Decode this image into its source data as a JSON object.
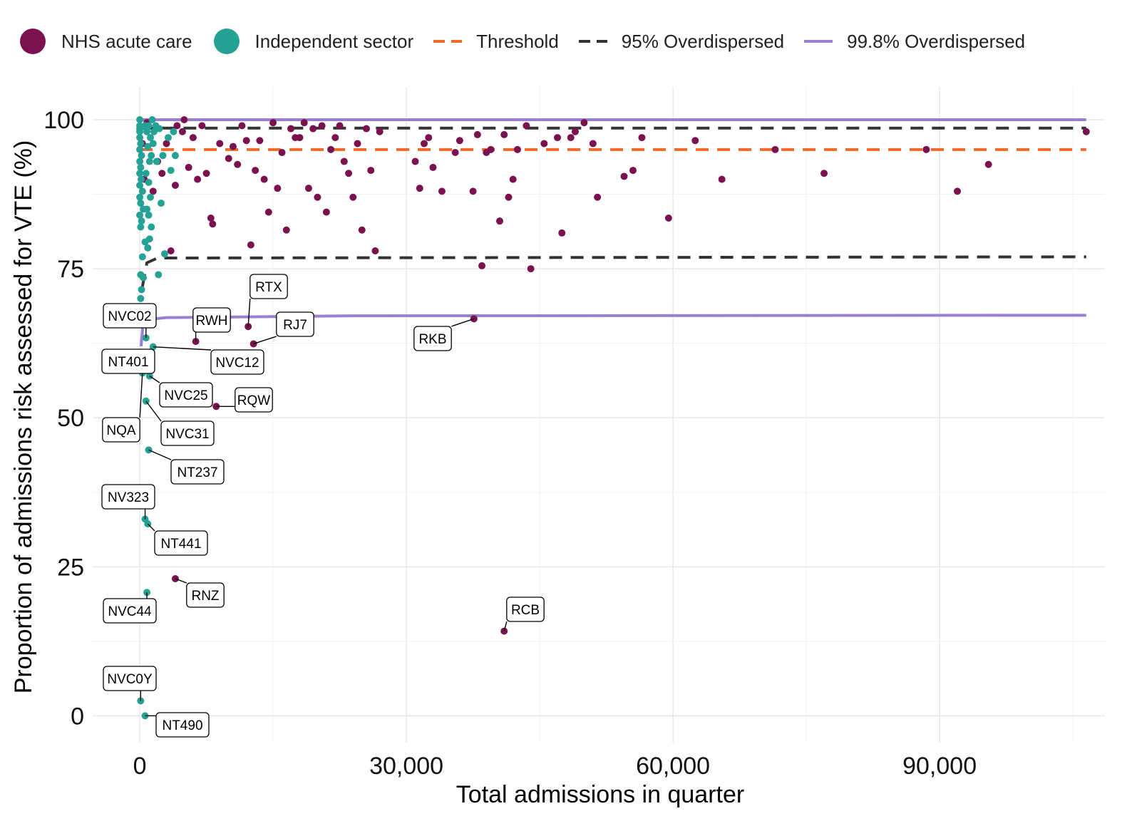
{
  "legend": {
    "items": [
      {
        "label": "NHS acute care",
        "kind": "point",
        "color": "#7a1250"
      },
      {
        "label": "Independent sector",
        "kind": "point",
        "color": "#26a196"
      },
      {
        "label": "Threshold",
        "kind": "dashed",
        "color": "#f16a26"
      },
      {
        "label": "95% Overdispersed",
        "kind": "dashed",
        "color": "#333333"
      },
      {
        "label": "99.8% Overdispersed",
        "kind": "solid",
        "color": "#9b7fcf"
      }
    ]
  },
  "chart_data": {
    "type": "scatter",
    "title": "",
    "xlabel": "Total admissions in quarter",
    "ylabel": "Proportion of admissions risk assessed for VTE (%)",
    "xlim": [
      -5300,
      108600
    ],
    "ylim": [
      -4.5,
      105.5
    ],
    "x_ticks": [
      0,
      30000,
      60000,
      90000
    ],
    "x_tick_labels": [
      "0",
      "30,000",
      "60,000",
      "90,000"
    ],
    "y_ticks": [
      0,
      25,
      50,
      75,
      100
    ],
    "y_tick_labels": [
      "0",
      "25",
      "50",
      "75",
      "100"
    ],
    "grid": true,
    "legend_position": "top",
    "colors": {
      "nhs": "#7a1250",
      "independent": "#26a196",
      "threshold": "#f16a26",
      "od95": "#333333",
      "od998": "#9b7fcf"
    },
    "reference_lines": [
      {
        "name": "Threshold",
        "style": "dashed",
        "y": 95
      },
      {
        "name": "95% Overdispersed",
        "style": "dashed",
        "upper": 98.6,
        "lower": 77,
        "lower_start": [
          [
            300,
            72
          ],
          [
            800,
            76
          ],
          [
            2000,
            76.8
          ]
        ]
      },
      {
        "name": "99.8% Overdispersed",
        "style": "solid",
        "upper": 100,
        "lower": 67.2,
        "lower_start": [
          [
            150,
            62
          ],
          [
            400,
            66.4
          ],
          [
            3000,
            66.8
          ],
          [
            24000,
            67.1
          ]
        ]
      }
    ],
    "series": [
      {
        "name": "NHS acute care",
        "color": "#7a1250",
        "points": [
          [
            300,
            96
          ],
          [
            500,
            90
          ],
          [
            800,
            99.5
          ],
          [
            1500,
            88
          ],
          [
            2000,
            93
          ],
          [
            2500,
            91
          ],
          [
            3000,
            96
          ],
          [
            3500,
            78
          ],
          [
            4000,
            89
          ],
          [
            4200,
            99
          ],
          [
            4800,
            98
          ],
          [
            5000,
            100
          ],
          [
            5500,
            92
          ],
          [
            6000,
            97
          ],
          [
            6500,
            90
          ],
          [
            7000,
            99
          ],
          [
            7500,
            91
          ],
          [
            8000,
            83.5
          ],
          [
            8200,
            82.5
          ],
          [
            9000,
            96
          ],
          [
            10000,
            93.5
          ],
          [
            10500,
            95.5
          ],
          [
            11000,
            92.5
          ],
          [
            11500,
            99
          ],
          [
            12000,
            96.5
          ],
          [
            12500,
            79
          ],
          [
            13000,
            91.5
          ],
          [
            13500,
            96.5
          ],
          [
            14000,
            90
          ],
          [
            14500,
            84.5
          ],
          [
            15000,
            99.5
          ],
          [
            15500,
            88.5
          ],
          [
            16000,
            94.5
          ],
          [
            16500,
            81.5
          ],
          [
            17000,
            98.5
          ],
          [
            17500,
            97
          ],
          [
            18000,
            97
          ],
          [
            18500,
            99.5
          ],
          [
            19000,
            88.5
          ],
          [
            19500,
            98.5
          ],
          [
            20000,
            87
          ],
          [
            20500,
            99
          ],
          [
            21000,
            84.5
          ],
          [
            21500,
            95
          ],
          [
            22000,
            97
          ],
          [
            22500,
            99
          ],
          [
            23000,
            93
          ],
          [
            23500,
            91
          ],
          [
            24000,
            87
          ],
          [
            24500,
            96
          ],
          [
            25000,
            81.5
          ],
          [
            25500,
            98.5
          ],
          [
            26000,
            91.5
          ],
          [
            26500,
            78
          ],
          [
            27000,
            98
          ],
          [
            31000,
            93
          ],
          [
            31500,
            88.5
          ],
          [
            32000,
            96
          ],
          [
            32500,
            97
          ],
          [
            33000,
            92
          ],
          [
            34000,
            88
          ],
          [
            35500,
            94.5
          ],
          [
            36000,
            96.5
          ],
          [
            37500,
            88
          ],
          [
            38000,
            97.5
          ],
          [
            38500,
            75.5
          ],
          [
            39000,
            94.5
          ],
          [
            39500,
            95
          ],
          [
            40500,
            83
          ],
          [
            41000,
            97.5
          ],
          [
            41500,
            87
          ],
          [
            42000,
            90
          ],
          [
            42500,
            95
          ],
          [
            43500,
            99
          ],
          [
            44000,
            75
          ],
          [
            45500,
            96
          ],
          [
            47000,
            97
          ],
          [
            47500,
            81
          ],
          [
            48500,
            97
          ],
          [
            49000,
            98
          ],
          [
            50000,
            99.5
          ],
          [
            51000,
            96
          ],
          [
            51500,
            87
          ],
          [
            54500,
            90.5
          ],
          [
            55500,
            91.5
          ],
          [
            56500,
            97
          ],
          [
            59500,
            83.5
          ],
          [
            62500,
            96.5
          ],
          [
            65500,
            90
          ],
          [
            71500,
            95
          ],
          [
            77000,
            91
          ],
          [
            88500,
            95
          ],
          [
            92000,
            88
          ],
          [
            95500,
            92.5
          ],
          [
            106500,
            98
          ],
          [
            6300,
            62.8
          ],
          [
            12200,
            65.3
          ],
          [
            12800,
            62.4
          ],
          [
            37600,
            66.6
          ],
          [
            8600,
            51.9
          ],
          [
            4000,
            23
          ],
          [
            41000,
            14.2
          ]
        ]
      },
      {
        "name": "Independent sector",
        "color": "#26a196",
        "points": [
          [
            0,
            100
          ],
          [
            0,
            99
          ],
          [
            0,
            98.5
          ],
          [
            0,
            98
          ],
          [
            0,
            97
          ],
          [
            100,
            96
          ],
          [
            0,
            95
          ],
          [
            200,
            94
          ],
          [
            0,
            93
          ],
          [
            100,
            92
          ],
          [
            0,
            91
          ],
          [
            150,
            90
          ],
          [
            0,
            89
          ],
          [
            300,
            88
          ],
          [
            0,
            87
          ],
          [
            100,
            86
          ],
          [
            400,
            85
          ],
          [
            0,
            84
          ],
          [
            200,
            83
          ],
          [
            100,
            82
          ],
          [
            600,
            99
          ],
          [
            800,
            98
          ],
          [
            1000,
            99
          ],
          [
            1200,
            97
          ],
          [
            1400,
            100
          ],
          [
            1600,
            98
          ],
          [
            1800,
            99
          ],
          [
            900,
            95.5
          ],
          [
            1100,
            93
          ],
          [
            1300,
            94
          ],
          [
            1500,
            96
          ],
          [
            700,
            91
          ],
          [
            1000,
            89.5
          ],
          [
            1200,
            87
          ],
          [
            800,
            85
          ],
          [
            1000,
            84
          ],
          [
            1300,
            82
          ],
          [
            1100,
            80
          ],
          [
            600,
            79.5
          ],
          [
            900,
            78.5
          ],
          [
            300,
            77
          ],
          [
            100,
            74
          ],
          [
            400,
            73.5
          ],
          [
            200,
            71.5
          ],
          [
            100,
            70
          ],
          [
            2200,
            98.5
          ],
          [
            2600,
            94
          ],
          [
            3200,
            97
          ],
          [
            3800,
            98
          ],
          [
            2400,
            86
          ],
          [
            3500,
            91.5
          ],
          [
            4000,
            94
          ],
          [
            2100,
            74
          ],
          [
            2800,
            77.5
          ],
          [
            1900,
            93
          ],
          [
            700,
            63.4
          ],
          [
            1500,
            61.9
          ],
          [
            300,
            57.5
          ],
          [
            1100,
            57
          ],
          [
            700,
            52.8
          ],
          [
            1000,
            44.6
          ],
          [
            600,
            33
          ],
          [
            900,
            32.2
          ],
          [
            800,
            20.7
          ],
          [
            100,
            2.5
          ],
          [
            600,
            0
          ]
        ]
      }
    ],
    "annotations": [
      {
        "label": "RTX",
        "x": 12200,
        "y": 65.3
      },
      {
        "label": "RWH",
        "x": 6300,
        "y": 62.8
      },
      {
        "label": "RJ7",
        "x": 12800,
        "y": 62.4
      },
      {
        "label": "RKB",
        "x": 37600,
        "y": 66.6
      },
      {
        "label": "NVC02",
        "x": 700,
        "y": 63.4
      },
      {
        "label": "NVC12",
        "x": 1500,
        "y": 61.9
      },
      {
        "label": "NT401",
        "x": 300,
        "y": 57.5
      },
      {
        "label": "NVC25",
        "x": 1100,
        "y": 57
      },
      {
        "label": "RQW",
        "x": 8600,
        "y": 51.9
      },
      {
        "label": "NQA",
        "x": 300,
        "y": 57.5
      },
      {
        "label": "NVC31",
        "x": 700,
        "y": 52.8
      },
      {
        "label": "NT237",
        "x": 1000,
        "y": 44.6
      },
      {
        "label": "NV323",
        "x": 600,
        "y": 33
      },
      {
        "label": "NT441",
        "x": 900,
        "y": 32.2
      },
      {
        "label": "RNZ",
        "x": 4000,
        "y": 23
      },
      {
        "label": "NVC44",
        "x": 800,
        "y": 20.7
      },
      {
        "label": "RCB",
        "x": 41000,
        "y": 14.2
      },
      {
        "label": "NVC0Y",
        "x": 100,
        "y": 2.5
      },
      {
        "label": "NT490",
        "x": 600,
        "y": 0
      }
    ]
  }
}
